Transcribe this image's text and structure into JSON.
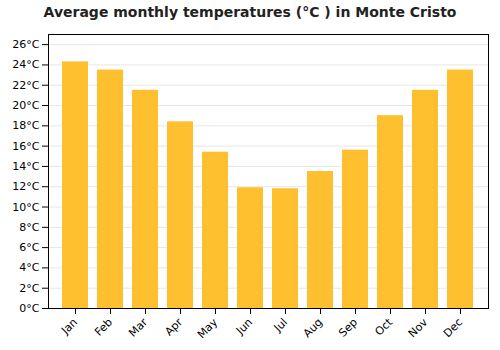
{
  "chart_data": {
    "type": "bar",
    "title": "Average monthly temperatures (°C ) in Monte Cristo",
    "categories": [
      "Jan",
      "Feb",
      "Mar",
      "Apr",
      "May",
      "Jun",
      "Jul",
      "Aug",
      "Sep",
      "Oct",
      "Nov",
      "Dec"
    ],
    "values": [
      24.3,
      23.5,
      21.5,
      18.4,
      15.4,
      11.9,
      11.8,
      13.5,
      15.6,
      19.0,
      21.5,
      23.5
    ],
    "color": "#FFC030",
    "ylim": [
      0,
      27
    ],
    "yticks": [
      {
        "value": 0,
        "label": "0°C"
      },
      {
        "value": 2,
        "label": "2°C"
      },
      {
        "value": 4,
        "label": "4°C"
      },
      {
        "value": 6,
        "label": "6°C"
      },
      {
        "value": 8,
        "label": "8°C"
      },
      {
        "value": 10,
        "label": "10°C"
      },
      {
        "value": 12,
        "label": "12°C"
      },
      {
        "value": 14,
        "label": "14°C"
      },
      {
        "value": 16,
        "label": "16°C"
      },
      {
        "value": 18,
        "label": "18°C"
      },
      {
        "value": 20,
        "label": "20°C"
      },
      {
        "value": 22,
        "label": "22°C"
      },
      {
        "value": 24,
        "label": "24°C"
      },
      {
        "value": 26,
        "label": "26°C"
      }
    ],
    "grid": true
  }
}
